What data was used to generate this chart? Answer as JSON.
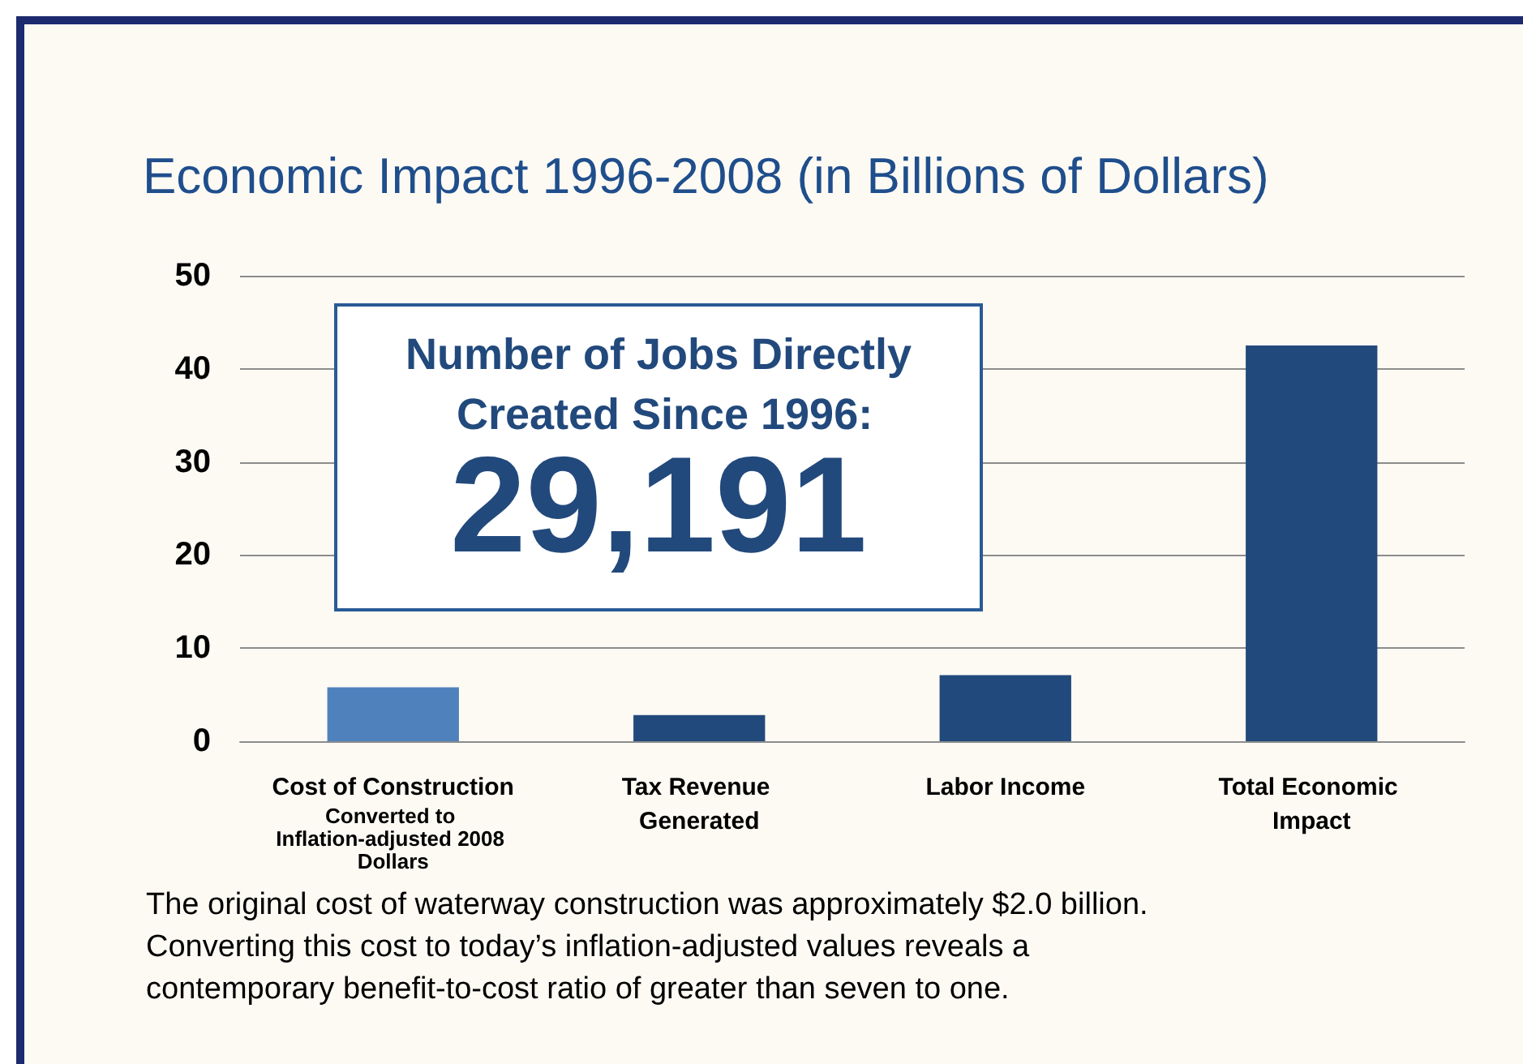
{
  "chart_data": {
    "type": "bar",
    "title": "Economic Impact 1996-2008 (in Billions of Dollars)",
    "categories": [
      "Cost of Construction",
      "Tax Revenue Generated",
      "Labor Income",
      "Total Economic Impact"
    ],
    "values": [
      5.8,
      2.8,
      7.1,
      42.5
    ],
    "colors": [
      "#4f81bd",
      "#22497c",
      "#22497c",
      "#22497c"
    ],
    "ylim": [
      0,
      50
    ],
    "yticks": [
      0,
      10,
      20,
      30,
      40,
      50
    ],
    "grid": "y",
    "annotations": [
      "Converted to Inflation-adjusted 2008 Dollars",
      "Number of Jobs Directly Created Since 1996:",
      "29,191",
      "The original cost of waterway construction was approximately $2.0 billion. Converting this cost to today’s inflation-adjusted values reveals a contemporary benefit-to-cost ratio of greater than seven to one."
    ]
  }
}
